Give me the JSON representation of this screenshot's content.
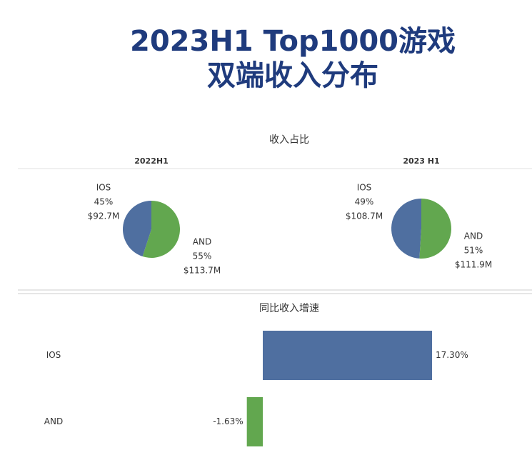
{
  "title_lines": [
    "2023H1 Top1000游戏",
    "双端收入分布"
  ],
  "pie_group_title": "收入占比",
  "chart_data": [
    {
      "type": "pie",
      "title": "2022H1",
      "categories": [
        "IOS",
        "AND"
      ],
      "values": [
        45,
        55
      ],
      "value_labels": [
        "45%",
        "55%"
      ],
      "revenue": [
        92.7,
        113.7
      ],
      "revenue_labels": [
        "$92.7M",
        "$113.7M"
      ],
      "colors": [
        "#4f6fa0",
        "#62a74f"
      ]
    },
    {
      "type": "pie",
      "title": "2023 H1",
      "categories": [
        "IOS",
        "AND"
      ],
      "values": [
        49,
        51
      ],
      "value_labels": [
        "49%",
        "51%"
      ],
      "revenue": [
        108.7,
        111.9
      ],
      "revenue_labels": [
        "$108.7M",
        "$111.9M"
      ],
      "colors": [
        "#4f6fa0",
        "#62a74f"
      ]
    },
    {
      "type": "hbar",
      "title": "同比收入增速",
      "categories": [
        "IOS",
        "AND"
      ],
      "values": [
        17.3,
        -1.63
      ],
      "value_labels": [
        "17.30%",
        "-1.63%"
      ],
      "colors": [
        "#4f6fa0",
        "#62a74f"
      ],
      "xlim": [
        -10,
        20
      ]
    }
  ]
}
